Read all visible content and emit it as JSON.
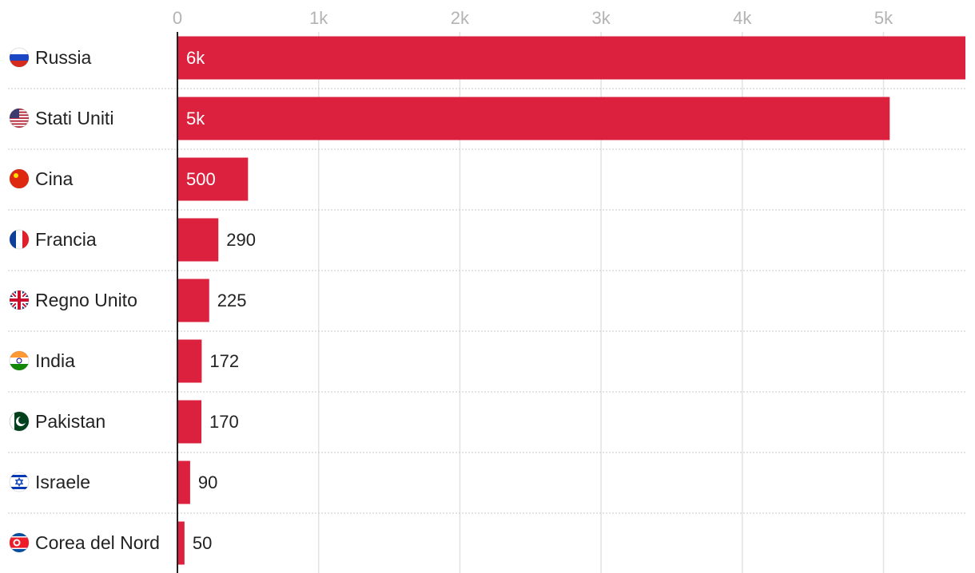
{
  "chart_data": {
    "type": "bar",
    "orientation": "horizontal",
    "title": "",
    "xlabel": "",
    "ylabel": "",
    "categories": [
      "Russia",
      "Stati Uniti",
      "Cina",
      "Francia",
      "Regno Unito",
      "India",
      "Pakistan",
      "Israele",
      "Corea del Nord"
    ],
    "values": [
      5580,
      5044,
      500,
      290,
      225,
      172,
      170,
      90,
      50
    ],
    "value_labels": [
      "6k",
      "5k",
      "500",
      "290",
      "225",
      "172",
      "170",
      "90",
      "50"
    ],
    "flags": [
      "russia-flag-icon",
      "usa-flag-icon",
      "china-flag-icon",
      "france-flag-icon",
      "uk-flag-icon",
      "india-flag-icon",
      "pakistan-flag-icon",
      "israel-flag-icon",
      "north-korea-flag-icon"
    ],
    "x_ticks": [
      0,
      1000,
      2000,
      3000,
      4000,
      5000
    ],
    "x_tick_labels": [
      "0",
      "1k",
      "2k",
      "3k",
      "4k",
      "5k"
    ],
    "xlim": [
      0,
      5580
    ],
    "grid": true,
    "legend": "none",
    "colors": {
      "bar": "#dc213e",
      "label_inside": "#ffffff",
      "label_outside": "#222222",
      "grid": "#e3e3e3",
      "row_separator": "#c8c8c8",
      "axis": "#222222"
    }
  }
}
